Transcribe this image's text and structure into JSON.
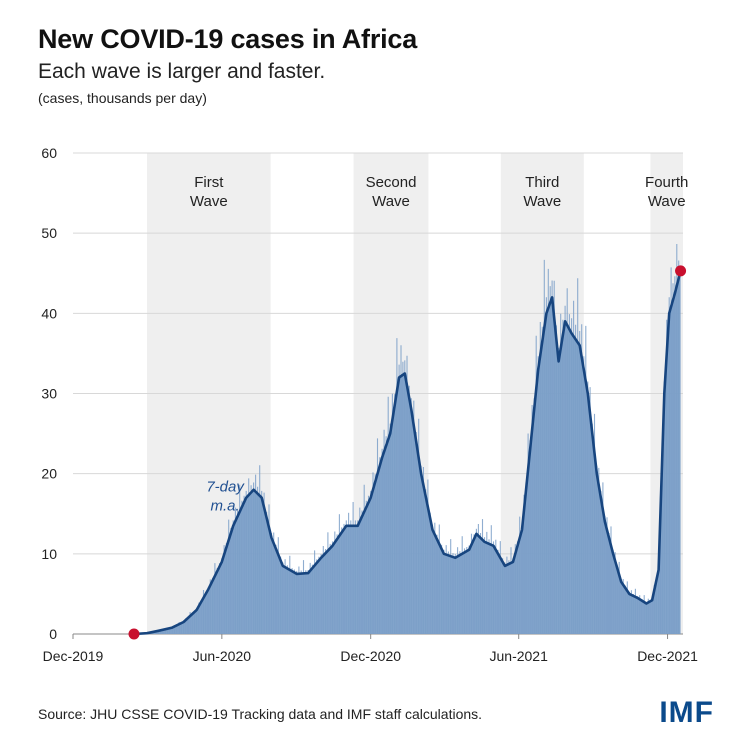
{
  "header": {
    "title": "New COVID-19 cases in Africa",
    "subtitle": "Each wave is larger and faster.",
    "unit": "(cases, thousands per day)"
  },
  "footer": {
    "source": "Source: JHU CSSE COVID-19 Tracking data and IMF staff calculations.",
    "logo": "IMF"
  },
  "colors": {
    "area": "#7b9fc8",
    "line": "#17457f",
    "wave_band": "#efefef",
    "marker": "#c8102e",
    "grid": "#d8d8d8"
  },
  "chart_data": {
    "type": "area",
    "ylabel": "(cases, thousands per day)",
    "ylim": [
      0,
      60
    ],
    "yticks": [
      0,
      10,
      20,
      30,
      40,
      50,
      60
    ],
    "xlim": [
      "2019-12-01",
      "2021-12-20"
    ],
    "xticks": [
      {
        "date": "2019-12-01",
        "label": "Dec-2019"
      },
      {
        "date": "2020-06-01",
        "label": "Jun-2020"
      },
      {
        "date": "2020-12-01",
        "label": "Dec-2020"
      },
      {
        "date": "2021-06-01",
        "label": "Jun-2021"
      },
      {
        "date": "2021-12-01",
        "label": "Dec-2021"
      }
    ],
    "waves": [
      {
        "label_line1": "First",
        "label_line2": "Wave",
        "start": "2020-03-01",
        "end": "2020-07-31"
      },
      {
        "label_line1": "Second",
        "label_line2": "Wave",
        "start": "2020-11-10",
        "end": "2021-02-10"
      },
      {
        "label_line1": "Third",
        "label_line2": "Wave",
        "start": "2021-05-10",
        "end": "2021-08-20"
      },
      {
        "label_line1": "Fourth",
        "label_line2": "Wave",
        "start": "2021-11-10",
        "end": "2021-12-20"
      }
    ],
    "annotation": {
      "line1": "7-day",
      "line2": "m.a."
    },
    "series": [
      {
        "name": "7-day m.a.",
        "points": [
          [
            "2020-02-14",
            0.0
          ],
          [
            "2020-03-01",
            0.1
          ],
          [
            "2020-03-15",
            0.4
          ],
          [
            "2020-04-01",
            0.8
          ],
          [
            "2020-04-15",
            1.5
          ],
          [
            "2020-05-01",
            3.0
          ],
          [
            "2020-05-15",
            5.5
          ],
          [
            "2020-06-01",
            9.0
          ],
          [
            "2020-06-15",
            13.5
          ],
          [
            "2020-07-01",
            17.0
          ],
          [
            "2020-07-10",
            18.0
          ],
          [
            "2020-07-20",
            17.0
          ],
          [
            "2020-08-01",
            12.0
          ],
          [
            "2020-08-15",
            8.5
          ],
          [
            "2020-09-01",
            7.5
          ],
          [
            "2020-09-15",
            7.6
          ],
          [
            "2020-10-01",
            9.5
          ],
          [
            "2020-10-15",
            11.0
          ],
          [
            "2020-11-01",
            13.5
          ],
          [
            "2020-11-15",
            13.5
          ],
          [
            "2020-12-01",
            17.0
          ],
          [
            "2020-12-15",
            22.0
          ],
          [
            "2020-12-25",
            25.0
          ],
          [
            "2021-01-05",
            32.0
          ],
          [
            "2021-01-12",
            32.5
          ],
          [
            "2021-01-20",
            28.0
          ],
          [
            "2021-02-01",
            20.0
          ],
          [
            "2021-02-15",
            13.0
          ],
          [
            "2021-03-01",
            10.0
          ],
          [
            "2021-03-15",
            9.5
          ],
          [
            "2021-04-01",
            10.5
          ],
          [
            "2021-04-10",
            12.5
          ],
          [
            "2021-04-20",
            11.5
          ],
          [
            "2021-05-01",
            11.0
          ],
          [
            "2021-05-15",
            8.5
          ],
          [
            "2021-05-25",
            9.0
          ],
          [
            "2021-06-05",
            13.0
          ],
          [
            "2021-06-15",
            23.0
          ],
          [
            "2021-06-25",
            33.0
          ],
          [
            "2021-07-05",
            40.0
          ],
          [
            "2021-07-12",
            42.0
          ],
          [
            "2021-07-20",
            34.0
          ],
          [
            "2021-07-28",
            39.0
          ],
          [
            "2021-08-05",
            37.5
          ],
          [
            "2021-08-15",
            36.0
          ],
          [
            "2021-08-25",
            30.0
          ],
          [
            "2021-09-05",
            20.0
          ],
          [
            "2021-09-15",
            14.0
          ],
          [
            "2021-09-25",
            10.0
          ],
          [
            "2021-10-05",
            6.5
          ],
          [
            "2021-10-15",
            5.0
          ],
          [
            "2021-10-25",
            4.5
          ],
          [
            "2021-11-05",
            3.8
          ],
          [
            "2021-11-12",
            4.2
          ],
          [
            "2021-11-20",
            8.0
          ],
          [
            "2021-11-27",
            30.0
          ],
          [
            "2021-12-03",
            40.0
          ],
          [
            "2021-12-10",
            42.5
          ],
          [
            "2021-12-17",
            45.3
          ]
        ]
      }
    ],
    "markers": [
      {
        "date": "2020-02-14",
        "value": 0.0
      },
      {
        "date": "2021-12-17",
        "value": 45.3
      }
    ]
  }
}
